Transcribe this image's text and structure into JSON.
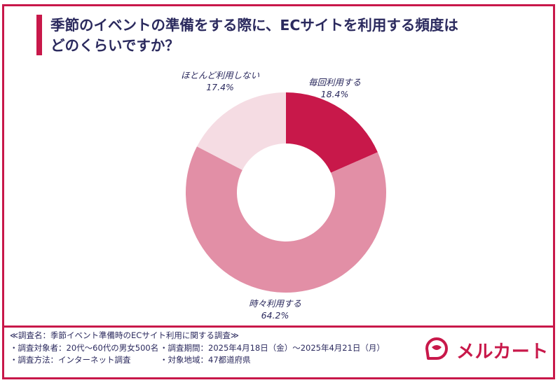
{
  "title_lines": [
    "季節のイベントの準備をする際に、ECサイトを利用する頻度は",
    "どのくらいですか？"
  ],
  "colors": {
    "accent": "#c8184a",
    "text": "#2b2a5e",
    "slice_often": "#c8184a",
    "slice_sometimes": "#e28fa6",
    "slice_rarely": "#f5dce3"
  },
  "chart_data": {
    "type": "pie",
    "style": "donut",
    "categories": [
      "毎回利用する",
      "時々利用する",
      "ほとんど利用しない"
    ],
    "values": [
      18.4,
      64.2,
      17.4
    ],
    "value_labels": [
      "18.4%",
      "64.2%",
      "17.4%"
    ],
    "colors": [
      "#c8184a",
      "#e28fa6",
      "#f5dce3"
    ],
    "start": "12 o'clock, clockwise",
    "legend": "labels beside slices"
  },
  "survey": {
    "name": "≪調査名：季節イベント準備時のECサイト利用に関する調査≫",
    "target": "・調査対象者：20代～60代の男女500名",
    "period": "・調査期間：2025年4月18日（金）～2025年4月21日（月）",
    "method": "・調査方法：インターネット調査",
    "region": "・対象地域：47都道府県"
  },
  "brand": {
    "name": "メルカート",
    "icon": "mercart-logo-icon"
  }
}
